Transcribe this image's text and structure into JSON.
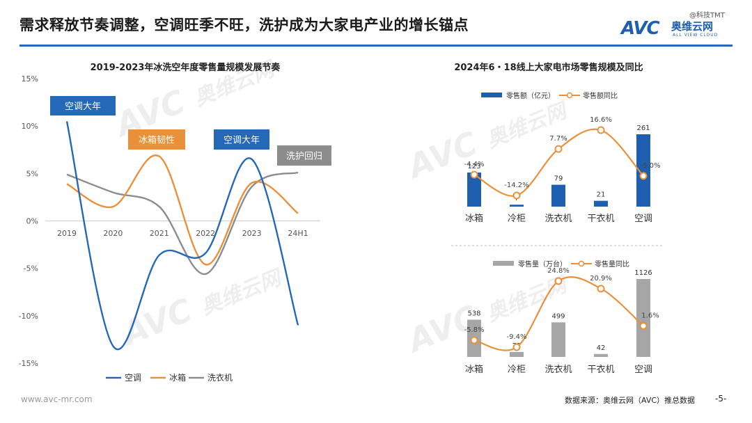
{
  "header": {
    "title": "需求释放节奏调整，空调旺季不旺，洗护成为大家电产业的增长锚点",
    "logo_mark": "AVC",
    "logo_cn": "奥维云网",
    "logo_en": "ALL VIEW CLOUD",
    "watermark_tag": "@科技TMT"
  },
  "footer": {
    "url": "www.avc-mr.com",
    "source": "数据来源：奥维云网（AVC）推总数据",
    "page": "-5-"
  },
  "watermark": {
    "mark": "AVC",
    "cn": "奥维云网",
    "en": "ALL VIEW CLOUD"
  },
  "colors": {
    "blue": "#2468b8",
    "orange": "#e8913a",
    "gray": "#8c8c8c",
    "bar_blue": "#1f5fb0",
    "bar_gray": "#a6a6a6"
  },
  "chart_data": [
    {
      "type": "line",
      "title": "2019-2023年冰洗空年度零售量规模发展节奏",
      "categories": [
        "2019",
        "2020",
        "2021",
        "2022",
        "2023",
        "24H1"
      ],
      "y_ticks": [
        "15%",
        "10%",
        "5%",
        "0%",
        "-5%",
        "-10%",
        "-15%"
      ],
      "ylim": [
        -15,
        15
      ],
      "smooth": true,
      "series": [
        {
          "name": "空调",
          "color": "#2468b8",
          "values": [
            10.5,
            -13.2,
            -3.6,
            -3.4,
            6.5,
            -11.0
          ]
        },
        {
          "name": "冰箱",
          "color": "#e8913a",
          "values": [
            3.9,
            1.5,
            6.8,
            -4.6,
            4.0,
            0.8
          ]
        },
        {
          "name": "洗衣机",
          "color": "#8c8c8c",
          "values": [
            4.9,
            3.0,
            1.5,
            -5.6,
            3.6,
            5.1
          ]
        }
      ],
      "callouts": [
        {
          "text": "空调大年",
          "color": "#2468b8"
        },
        {
          "text": "冰箱韧性",
          "color": "#e8913a"
        },
        {
          "text": "空调大年",
          "color": "#2468b8"
        },
        {
          "text": "洗护回归",
          "color": "#8c8c8c"
        }
      ],
      "legend_position": "bottom"
    },
    {
      "type": "bar+line",
      "title": "2024年6・18线上大家电市场零售规模及同比",
      "categories": [
        "冰箱",
        "冷柜",
        "洗衣机",
        "干衣机",
        "空调"
      ],
      "series": [
        {
          "name": "零售额（亿元）",
          "type": "bar",
          "color": "#1f5fb0",
          "values": [
            123,
            7,
            79,
            21,
            261
          ],
          "labels": [
            "123",
            "7",
            "79",
            "21",
            "261"
          ]
        },
        {
          "name": "零售额同比",
          "type": "line",
          "color": "#e8913a",
          "values": [
            -4.4,
            -14.2,
            7.7,
            16.6,
            -5.0
          ],
          "labels": [
            "-4.4%",
            "-14.2%",
            "7.7%",
            "16.6%",
            "-5.0%"
          ]
        }
      ],
      "legend_position": "top"
    },
    {
      "type": "bar+line",
      "categories": [
        "冰箱",
        "冷柜",
        "洗衣机",
        "干衣机",
        "空调"
      ],
      "series": [
        {
          "name": "零售量（万台）",
          "type": "bar",
          "color": "#a6a6a6",
          "values": [
            538,
            72,
            499,
            42,
            1126
          ],
          "labels": [
            "538",
            "72",
            "499",
            "42",
            "1126"
          ]
        },
        {
          "name": "零售量同比",
          "type": "line",
          "color": "#e8913a",
          "values": [
            -5.8,
            -9.4,
            24.8,
            20.9,
            1.6
          ],
          "labels": [
            "-5.8%",
            "-9.4%",
            "24.8%",
            "20.9%",
            "1.6%"
          ]
        }
      ],
      "legend_position": "top"
    }
  ]
}
